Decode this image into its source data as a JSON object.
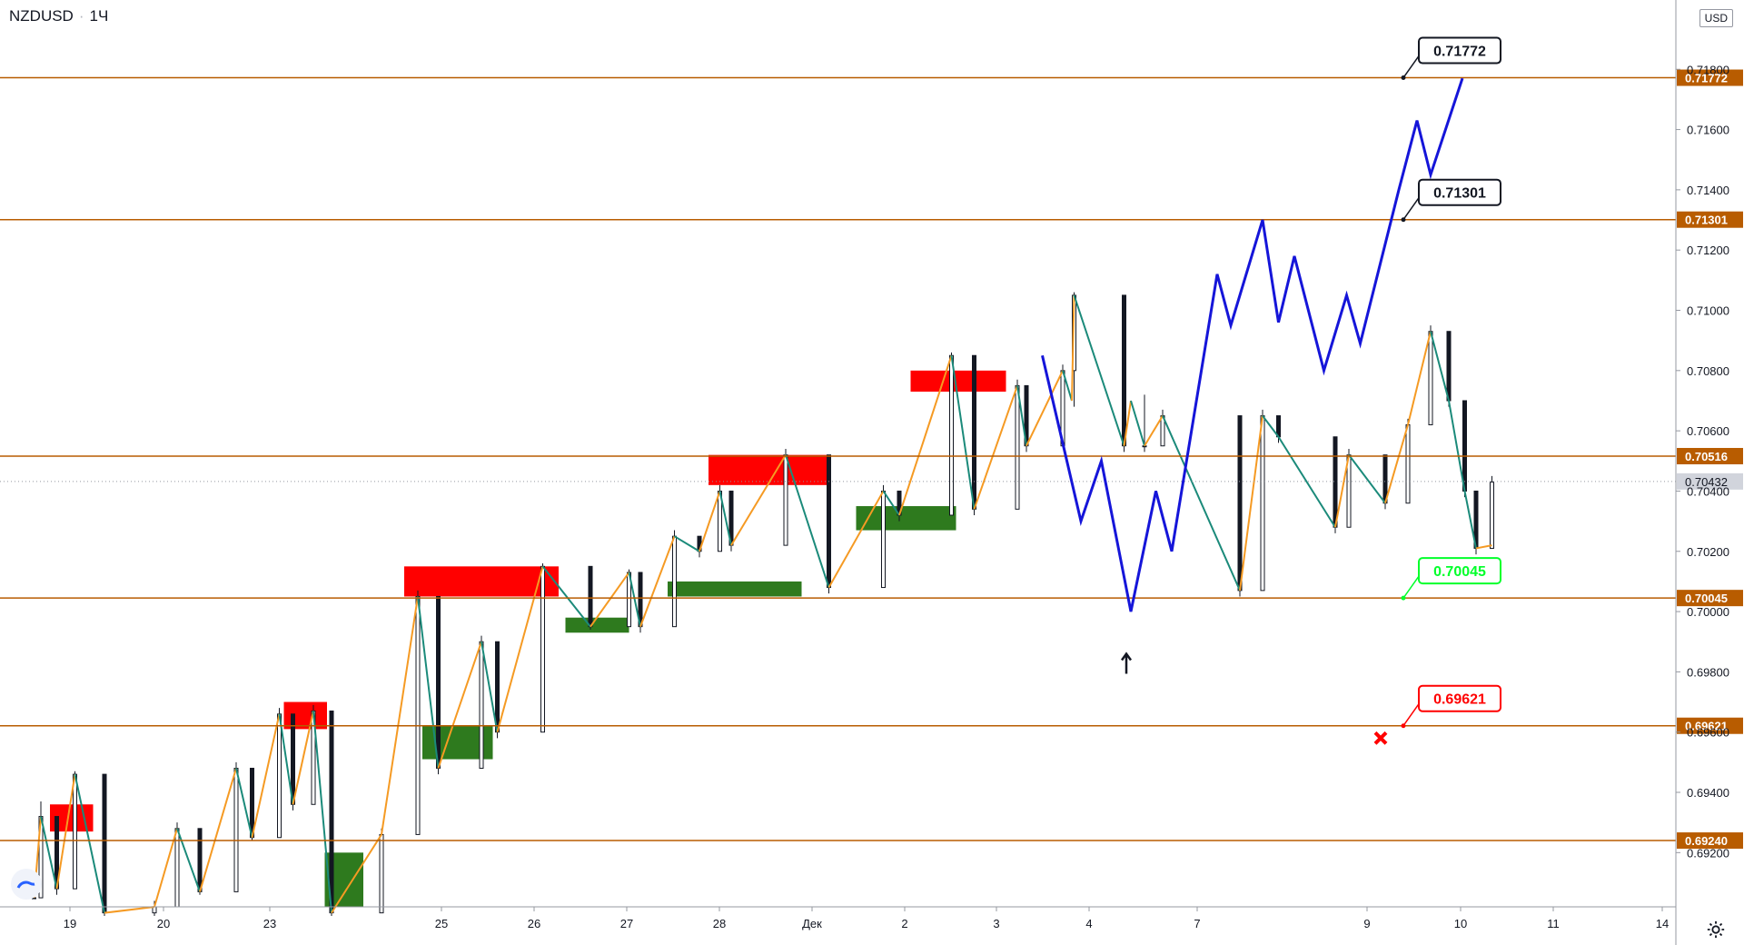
{
  "header": {
    "symbol": "NZDUSD",
    "interval": "1Ч",
    "currency": "USD"
  },
  "colors": {
    "level": "#b85c00",
    "up_leg": "#f59a23",
    "down_leg": "#1b8a7a",
    "forecast": "#1515d9",
    "supply_zone": "#ff0000",
    "demand_zone": "#2e7a1e",
    "target_good": "#00ff2a",
    "target_bad": "#ff0000"
  },
  "chart_data": {
    "type": "line",
    "title": "",
    "xlabel": "",
    "ylabel": "",
    "ylim": [
      0.6902,
      0.7203
    ],
    "x_tick_labels": [
      "19",
      "20",
      "23",
      "25",
      "26",
      "27",
      "28",
      "Дек",
      "2",
      "3",
      "4",
      "7",
      "9",
      "10",
      "11",
      "14"
    ],
    "y_tick_labels": [
      "0.69200",
      "0.69400",
      "0.69600",
      "0.69800",
      "0.70000",
      "0.70200",
      "0.70400",
      "0.70600",
      "0.70800",
      "0.71000",
      "0.71200",
      "0.71400",
      "0.71600",
      "0.71800"
    ],
    "y_ticks": [
      0.692,
      0.694,
      0.696,
      0.698,
      0.7,
      0.702,
      0.704,
      0.706,
      0.708,
      0.71,
      0.712,
      0.714,
      0.716,
      0.718
    ],
    "current_price": {
      "value": 0.70432,
      "label": "0.70432"
    },
    "levels": [
      {
        "value": 0.71772,
        "label": "0.71772"
      },
      {
        "value": 0.71301,
        "label": "0.71301"
      },
      {
        "value": 0.70516,
        "label": "0.70516"
      },
      {
        "value": 0.70045,
        "label": "0.70045"
      },
      {
        "value": 0.69621,
        "label": "0.69621"
      },
      {
        "value": 0.6924,
        "label": "0.69240"
      }
    ],
    "callouts": [
      {
        "label": "0.71772",
        "value": 0.71772,
        "kind": "target"
      },
      {
        "label": "0.71301",
        "value": 0.71301,
        "kind": "target"
      },
      {
        "label": "0.70045",
        "value": 0.70045,
        "kind": "take"
      },
      {
        "label": "0.69621",
        "value": 0.69621,
        "kind": "stop"
      }
    ],
    "zigzag": [
      [
        0.5,
        0.6905
      ],
      [
        0.8,
        0.6932
      ],
      [
        1.5,
        0.6908
      ],
      [
        2.3,
        0.6946
      ],
      [
        3.6,
        0.69
      ],
      [
        5.8,
        0.6902
      ],
      [
        6.8,
        0.6928
      ],
      [
        7.8,
        0.6907
      ],
      [
        9.4,
        0.6948
      ],
      [
        10.1,
        0.6925
      ],
      [
        11.3,
        0.6966
      ],
      [
        11.9,
        0.6936
      ],
      [
        12.8,
        0.6967
      ],
      [
        13.6,
        0.69
      ],
      [
        15.8,
        0.6926
      ],
      [
        17.4,
        0.7005
      ],
      [
        18.3,
        0.6948
      ],
      [
        20.2,
        0.699
      ],
      [
        20.9,
        0.696
      ],
      [
        22.9,
        0.7015
      ],
      [
        25.0,
        0.6995
      ],
      [
        26.7,
        0.7013
      ],
      [
        27.2,
        0.6995
      ],
      [
        28.7,
        0.7025
      ],
      [
        29.8,
        0.702
      ],
      [
        30.7,
        0.704
      ],
      [
        31.2,
        0.7022
      ],
      [
        33.6,
        0.7052
      ],
      [
        35.5,
        0.7008
      ],
      [
        37.9,
        0.704
      ],
      [
        38.6,
        0.7032
      ],
      [
        40.9,
        0.7085
      ],
      [
        41.9,
        0.7034
      ],
      [
        43.8,
        0.7075
      ],
      [
        44.2,
        0.7055
      ],
      [
        45.8,
        0.708
      ],
      [
        46.2,
        0.707
      ],
      [
        46.3,
        0.7105
      ],
      [
        48.5,
        0.7055
      ],
      [
        48.8,
        0.707
      ],
      [
        49.4,
        0.7055
      ],
      [
        50.2,
        0.7065
      ],
      [
        53.6,
        0.7007
      ],
      [
        54.6,
        0.7065
      ],
      [
        55.3,
        0.7058
      ],
      [
        57.8,
        0.7028
      ],
      [
        58.4,
        0.7052
      ],
      [
        60.0,
        0.7036
      ],
      [
        61.0,
        0.7062
      ],
      [
        62.0,
        0.7093
      ],
      [
        62.8,
        0.707
      ],
      [
        63.5,
        0.704
      ],
      [
        64.0,
        0.7021
      ],
      [
        64.7,
        0.7022
      ]
    ],
    "candles": [
      [
        0.5,
        0.6905,
        0.6905,
        0.6905,
        0.6905
      ],
      [
        0.8,
        0.6905,
        0.6937,
        0.6905,
        0.6932
      ],
      [
        1.5,
        0.6932,
        0.6932,
        0.6906,
        0.6908
      ],
      [
        2.3,
        0.6908,
        0.6947,
        0.6908,
        0.6946
      ],
      [
        3.6,
        0.6946,
        0.6946,
        0.6899,
        0.69
      ],
      [
        5.8,
        0.69,
        0.6904,
        0.6899,
        0.6902
      ],
      [
        6.8,
        0.6902,
        0.693,
        0.6902,
        0.6928
      ],
      [
        7.8,
        0.6928,
        0.6928,
        0.6906,
        0.6907
      ],
      [
        9.4,
        0.6907,
        0.695,
        0.6907,
        0.6948
      ],
      [
        10.1,
        0.6948,
        0.6948,
        0.6924,
        0.6925
      ],
      [
        11.3,
        0.6925,
        0.6968,
        0.6925,
        0.6966
      ],
      [
        11.9,
        0.6966,
        0.6966,
        0.6934,
        0.6936
      ],
      [
        12.8,
        0.6936,
        0.6969,
        0.6936,
        0.6967
      ],
      [
        13.6,
        0.6967,
        0.6967,
        0.6899,
        0.69
      ],
      [
        15.8,
        0.69,
        0.6928,
        0.69,
        0.6926
      ],
      [
        17.4,
        0.6926,
        0.7007,
        0.6926,
        0.7005
      ],
      [
        18.3,
        0.7005,
        0.7005,
        0.6946,
        0.6948
      ],
      [
        20.2,
        0.6948,
        0.6992,
        0.6948,
        0.699
      ],
      [
        20.9,
        0.699,
        0.699,
        0.6958,
        0.696
      ],
      [
        22.9,
        0.696,
        0.7016,
        0.696,
        0.7015
      ],
      [
        25.0,
        0.7015,
        0.7015,
        0.6994,
        0.6995
      ],
      [
        26.7,
        0.6995,
        0.7014,
        0.6995,
        0.7013
      ],
      [
        27.2,
        0.7013,
        0.7013,
        0.6993,
        0.6995
      ],
      [
        28.7,
        0.6995,
        0.7027,
        0.6995,
        0.7025
      ],
      [
        29.8,
        0.7025,
        0.7025,
        0.7018,
        0.702
      ],
      [
        30.7,
        0.702,
        0.7042,
        0.702,
        0.704
      ],
      [
        31.2,
        0.704,
        0.704,
        0.702,
        0.7022
      ],
      [
        33.6,
        0.7022,
        0.7054,
        0.7022,
        0.7052
      ],
      [
        35.5,
        0.7052,
        0.7052,
        0.7006,
        0.7008
      ],
      [
        37.9,
        0.7008,
        0.7042,
        0.7008,
        0.704
      ],
      [
        38.6,
        0.704,
        0.704,
        0.703,
        0.7032
      ],
      [
        40.9,
        0.7032,
        0.7086,
        0.7032,
        0.7085
      ],
      [
        41.9,
        0.7085,
        0.7085,
        0.7032,
        0.7034
      ],
      [
        43.8,
        0.7034,
        0.7077,
        0.7034,
        0.7075
      ],
      [
        44.2,
        0.7075,
        0.7075,
        0.7053,
        0.7055
      ],
      [
        45.8,
        0.7055,
        0.7082,
        0.7055,
        0.708
      ],
      [
        46.3,
        0.708,
        0.7106,
        0.7068,
        0.7105
      ],
      [
        48.5,
        0.7105,
        0.7105,
        0.7053,
        0.7055
      ],
      [
        49.4,
        0.7055,
        0.7072,
        0.7053,
        0.7055
      ],
      [
        50.2,
        0.7055,
        0.7067,
        0.7055,
        0.7065
      ],
      [
        53.6,
        0.7065,
        0.7065,
        0.7005,
        0.7007
      ],
      [
        54.6,
        0.7007,
        0.7067,
        0.7007,
        0.7065
      ],
      [
        55.3,
        0.7065,
        0.7065,
        0.7056,
        0.7058
      ],
      [
        57.8,
        0.7058,
        0.7058,
        0.7026,
        0.7028
      ],
      [
        58.4,
        0.7028,
        0.7054,
        0.7028,
        0.7052
      ],
      [
        60.0,
        0.7052,
        0.7052,
        0.7034,
        0.7036
      ],
      [
        61.0,
        0.7036,
        0.7064,
        0.7036,
        0.7062
      ],
      [
        62.0,
        0.7062,
        0.7095,
        0.7062,
        0.7093
      ],
      [
        62.8,
        0.7093,
        0.7093,
        0.7068,
        0.707
      ],
      [
        63.5,
        0.707,
        0.707,
        0.7038,
        0.704
      ],
      [
        64.0,
        0.704,
        0.704,
        0.7019,
        0.7021
      ],
      [
        64.7,
        0.7021,
        0.7045,
        0.7021,
        0.7043
      ]
    ],
    "zones": [
      {
        "kind": "supply",
        "x1": 1.2,
        "x2": 3.1,
        "y1": 0.6936,
        "y2": 0.6927
      },
      {
        "kind": "supply",
        "x1": 11.5,
        "x2": 13.4,
        "y1": 0.697,
        "y2": 0.6961
      },
      {
        "kind": "supply",
        "x1": 16.8,
        "x2": 23.6,
        "y1": 0.7015,
        "y2": 0.7005
      },
      {
        "kind": "supply",
        "x1": 30.2,
        "x2": 35.6,
        "y1": 0.7052,
        "y2": 0.7042
      },
      {
        "kind": "supply",
        "x1": 39.1,
        "x2": 43.3,
        "y1": 0.708,
        "y2": 0.7073
      },
      {
        "kind": "demand",
        "x1": 13.3,
        "x2": 15.0,
        "y1": 0.692,
        "y2": 0.6902
      },
      {
        "kind": "demand",
        "x1": 17.6,
        "x2": 20.7,
        "y1": 0.6962,
        "y2": 0.6951
      },
      {
        "kind": "demand",
        "x1": 23.9,
        "x2": 26.7,
        "y1": 0.6998,
        "y2": 0.6993
      },
      {
        "kind": "demand",
        "x1": 28.4,
        "x2": 34.3,
        "y1": 0.701,
        "y2": 0.7005
      },
      {
        "kind": "demand",
        "x1": 36.7,
        "x2": 41.1,
        "y1": 0.7035,
        "y2": 0.7027
      }
    ],
    "forecast": [
      [
        44.9,
        0.7085
      ],
      [
        46.6,
        0.703
      ],
      [
        47.5,
        0.705
      ],
      [
        48.8,
        0.7
      ],
      [
        49.9,
        0.704
      ],
      [
        50.6,
        0.702
      ],
      [
        52.6,
        0.7112
      ],
      [
        53.2,
        0.7095
      ],
      [
        54.6,
        0.713
      ],
      [
        55.3,
        0.7096
      ],
      [
        56.0,
        0.7118
      ],
      [
        57.3,
        0.708
      ],
      [
        58.3,
        0.7105
      ],
      [
        58.9,
        0.7089
      ],
      [
        60.6,
        0.714
      ],
      [
        61.4,
        0.7163
      ],
      [
        62.0,
        0.7145
      ],
      [
        63.4,
        0.7177
      ]
    ],
    "forecast_arrow_x": 48.6,
    "forecast_arrow_y": 0.6986,
    "stop_marker": {
      "x": 59.8,
      "y": 0.6958
    }
  }
}
